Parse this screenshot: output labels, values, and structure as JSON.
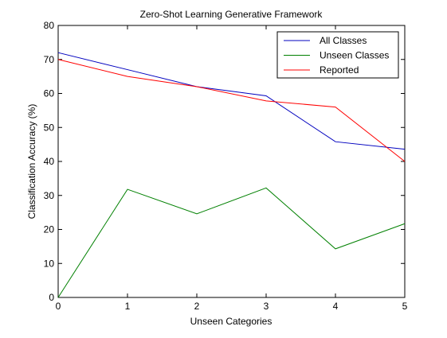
{
  "chart_data": {
    "type": "line",
    "title": "Zero-Shot Learning Generative Framework",
    "xlabel": "Unseen Categories",
    "ylabel": "Classification Accuracy (%)",
    "xlim": [
      0,
      5
    ],
    "ylim": [
      0,
      80
    ],
    "xticks": [
      0,
      1,
      2,
      3,
      4,
      5
    ],
    "yticks": [
      0,
      10,
      20,
      30,
      40,
      50,
      60,
      70,
      80
    ],
    "grid": false,
    "legend_position": "top-right",
    "x": [
      0,
      1,
      2,
      3,
      4,
      5
    ],
    "series": [
      {
        "name": "All Classes",
        "color": "#0000bf",
        "values": [
          72,
          67,
          62,
          59.3,
          45.8,
          43.6
        ]
      },
      {
        "name": "Unseen Classes",
        "color": "#008000",
        "values": [
          0,
          31.8,
          24.6,
          32.2,
          14.3,
          21.7
        ]
      },
      {
        "name": "Reported",
        "color": "#ff0000",
        "values": [
          70,
          65,
          62,
          57.8,
          56,
          40
        ]
      }
    ]
  }
}
